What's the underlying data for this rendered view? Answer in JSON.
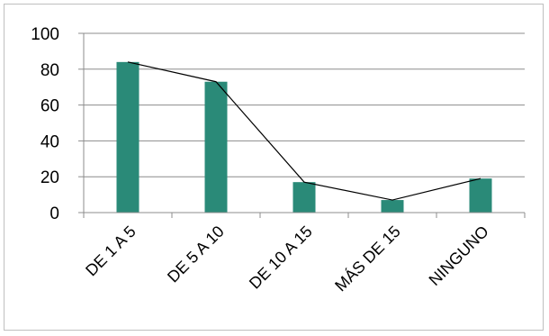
{
  "chart_data": {
    "type": "bar",
    "categories": [
      "DE 1 A 5",
      "DE 5 A 10",
      "DE 10 A 15",
      "MÁS DE 15",
      "NINGUNO"
    ],
    "series": [
      {
        "values": [
          84,
          73,
          17,
          7,
          19
        ],
        "color": "#2a8a78"
      }
    ],
    "overlay_line": {
      "values": [
        84,
        73,
        17,
        7,
        19
      ],
      "color": "#000000"
    },
    "ylim": [
      0,
      100
    ],
    "yticks": [
      {
        "value": 0,
        "label": "0"
      },
      {
        "value": 20,
        "label": "20"
      },
      {
        "value": 40,
        "label": "40"
      },
      {
        "value": 60,
        "label": "60"
      },
      {
        "value": 80,
        "label": "80"
      },
      {
        "value": 100,
        "label": "100"
      }
    ],
    "grid": true,
    "legend": "none",
    "title": "",
    "xlabel": "",
    "ylabel": ""
  }
}
